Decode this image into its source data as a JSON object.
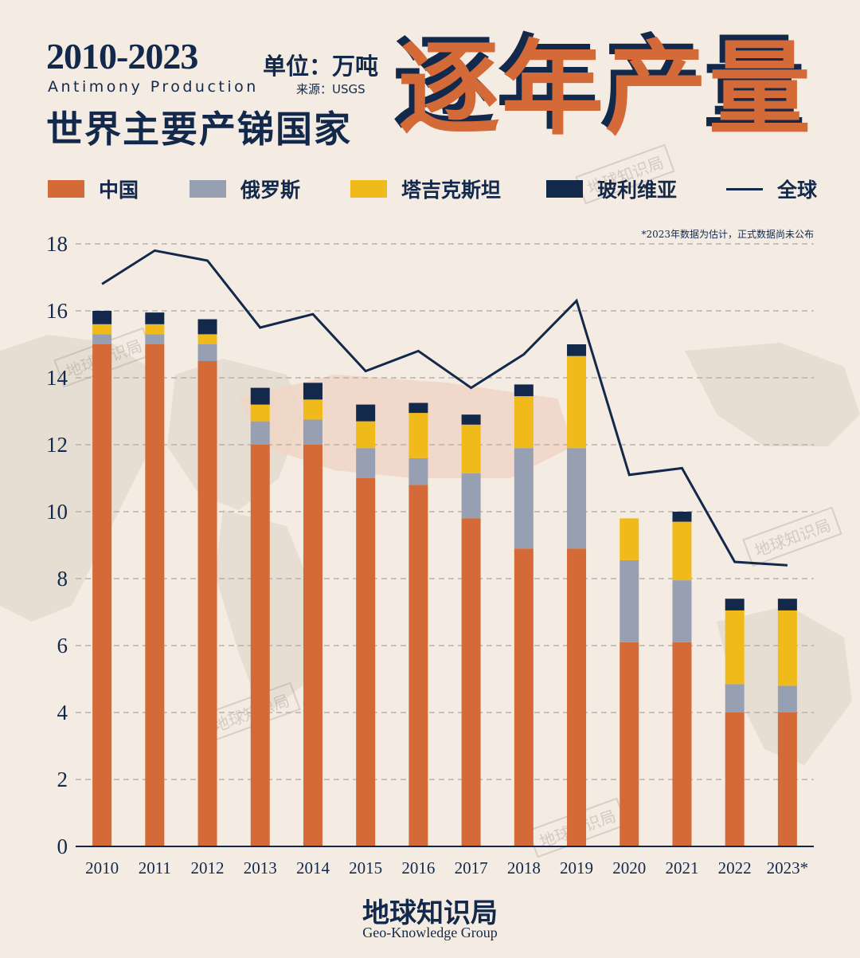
{
  "header": {
    "years": "2010-2023",
    "unit": "单位：万吨",
    "subtitle_en": "Antimony Production",
    "source": "来源：USGS",
    "main_title": "世界主要产锑国家",
    "big_title": "逐年产量"
  },
  "note": "*2023年数据为估计，正式数据尚未公布",
  "watermark": "地球知识局",
  "footer": {
    "cn": "地球知识局",
    "en": "Geo-Knowledge Group"
  },
  "colors": {
    "china": "#d46a38",
    "russia": "#97a0b2",
    "tajikistan": "#f0bb1a",
    "bolivia": "#13294b",
    "global": "#13294b",
    "grid": "#b9b2aa",
    "axis_text": "#13294b"
  },
  "chart_data": {
    "type": "bar",
    "stacked": true,
    "categories": [
      "2010",
      "2011",
      "2012",
      "2013",
      "2014",
      "2015",
      "2016",
      "2017",
      "2018",
      "2019",
      "2020",
      "2021",
      "2022",
      "2023*"
    ],
    "series": [
      {
        "name": "中国",
        "key": "china",
        "values": [
          15.0,
          15.0,
          14.5,
          12.0,
          12.0,
          11.0,
          10.8,
          9.8,
          8.9,
          8.9,
          6.1,
          6.1,
          4.0,
          4.0
        ]
      },
      {
        "name": "俄罗斯",
        "key": "russia",
        "values": [
          0.3,
          0.3,
          0.5,
          0.7,
          0.75,
          0.9,
          0.8,
          1.35,
          3.0,
          3.0,
          2.45,
          1.85,
          0.85,
          0.8
        ]
      },
      {
        "name": "塔吉克斯坦",
        "key": "tajikistan",
        "values": [
          0.3,
          0.3,
          0.3,
          0.5,
          0.6,
          0.8,
          1.35,
          1.45,
          1.55,
          2.75,
          1.25,
          1.75,
          2.2,
          2.25
        ]
      },
      {
        "name": "玻利维亚",
        "key": "bolivia",
        "values": [
          0.4,
          0.35,
          0.45,
          0.5,
          0.5,
          0.5,
          0.3,
          0.3,
          0.35,
          0.35,
          0.0,
          0.3,
          0.35,
          0.35
        ]
      }
    ],
    "line": {
      "name": "全球",
      "key": "global",
      "values": [
        16.8,
        17.8,
        17.5,
        15.5,
        15.9,
        14.2,
        14.8,
        13.7,
        14.7,
        16.3,
        11.1,
        11.3,
        8.5,
        8.4
      ]
    },
    "title": "世界主要产锑国家逐年产量",
    "ylabel": "万吨",
    "ylim": [
      0,
      18
    ],
    "yticks": [
      0,
      2,
      4,
      6,
      8,
      10,
      12,
      14,
      16,
      18
    ],
    "grid": true,
    "legend": "top"
  }
}
